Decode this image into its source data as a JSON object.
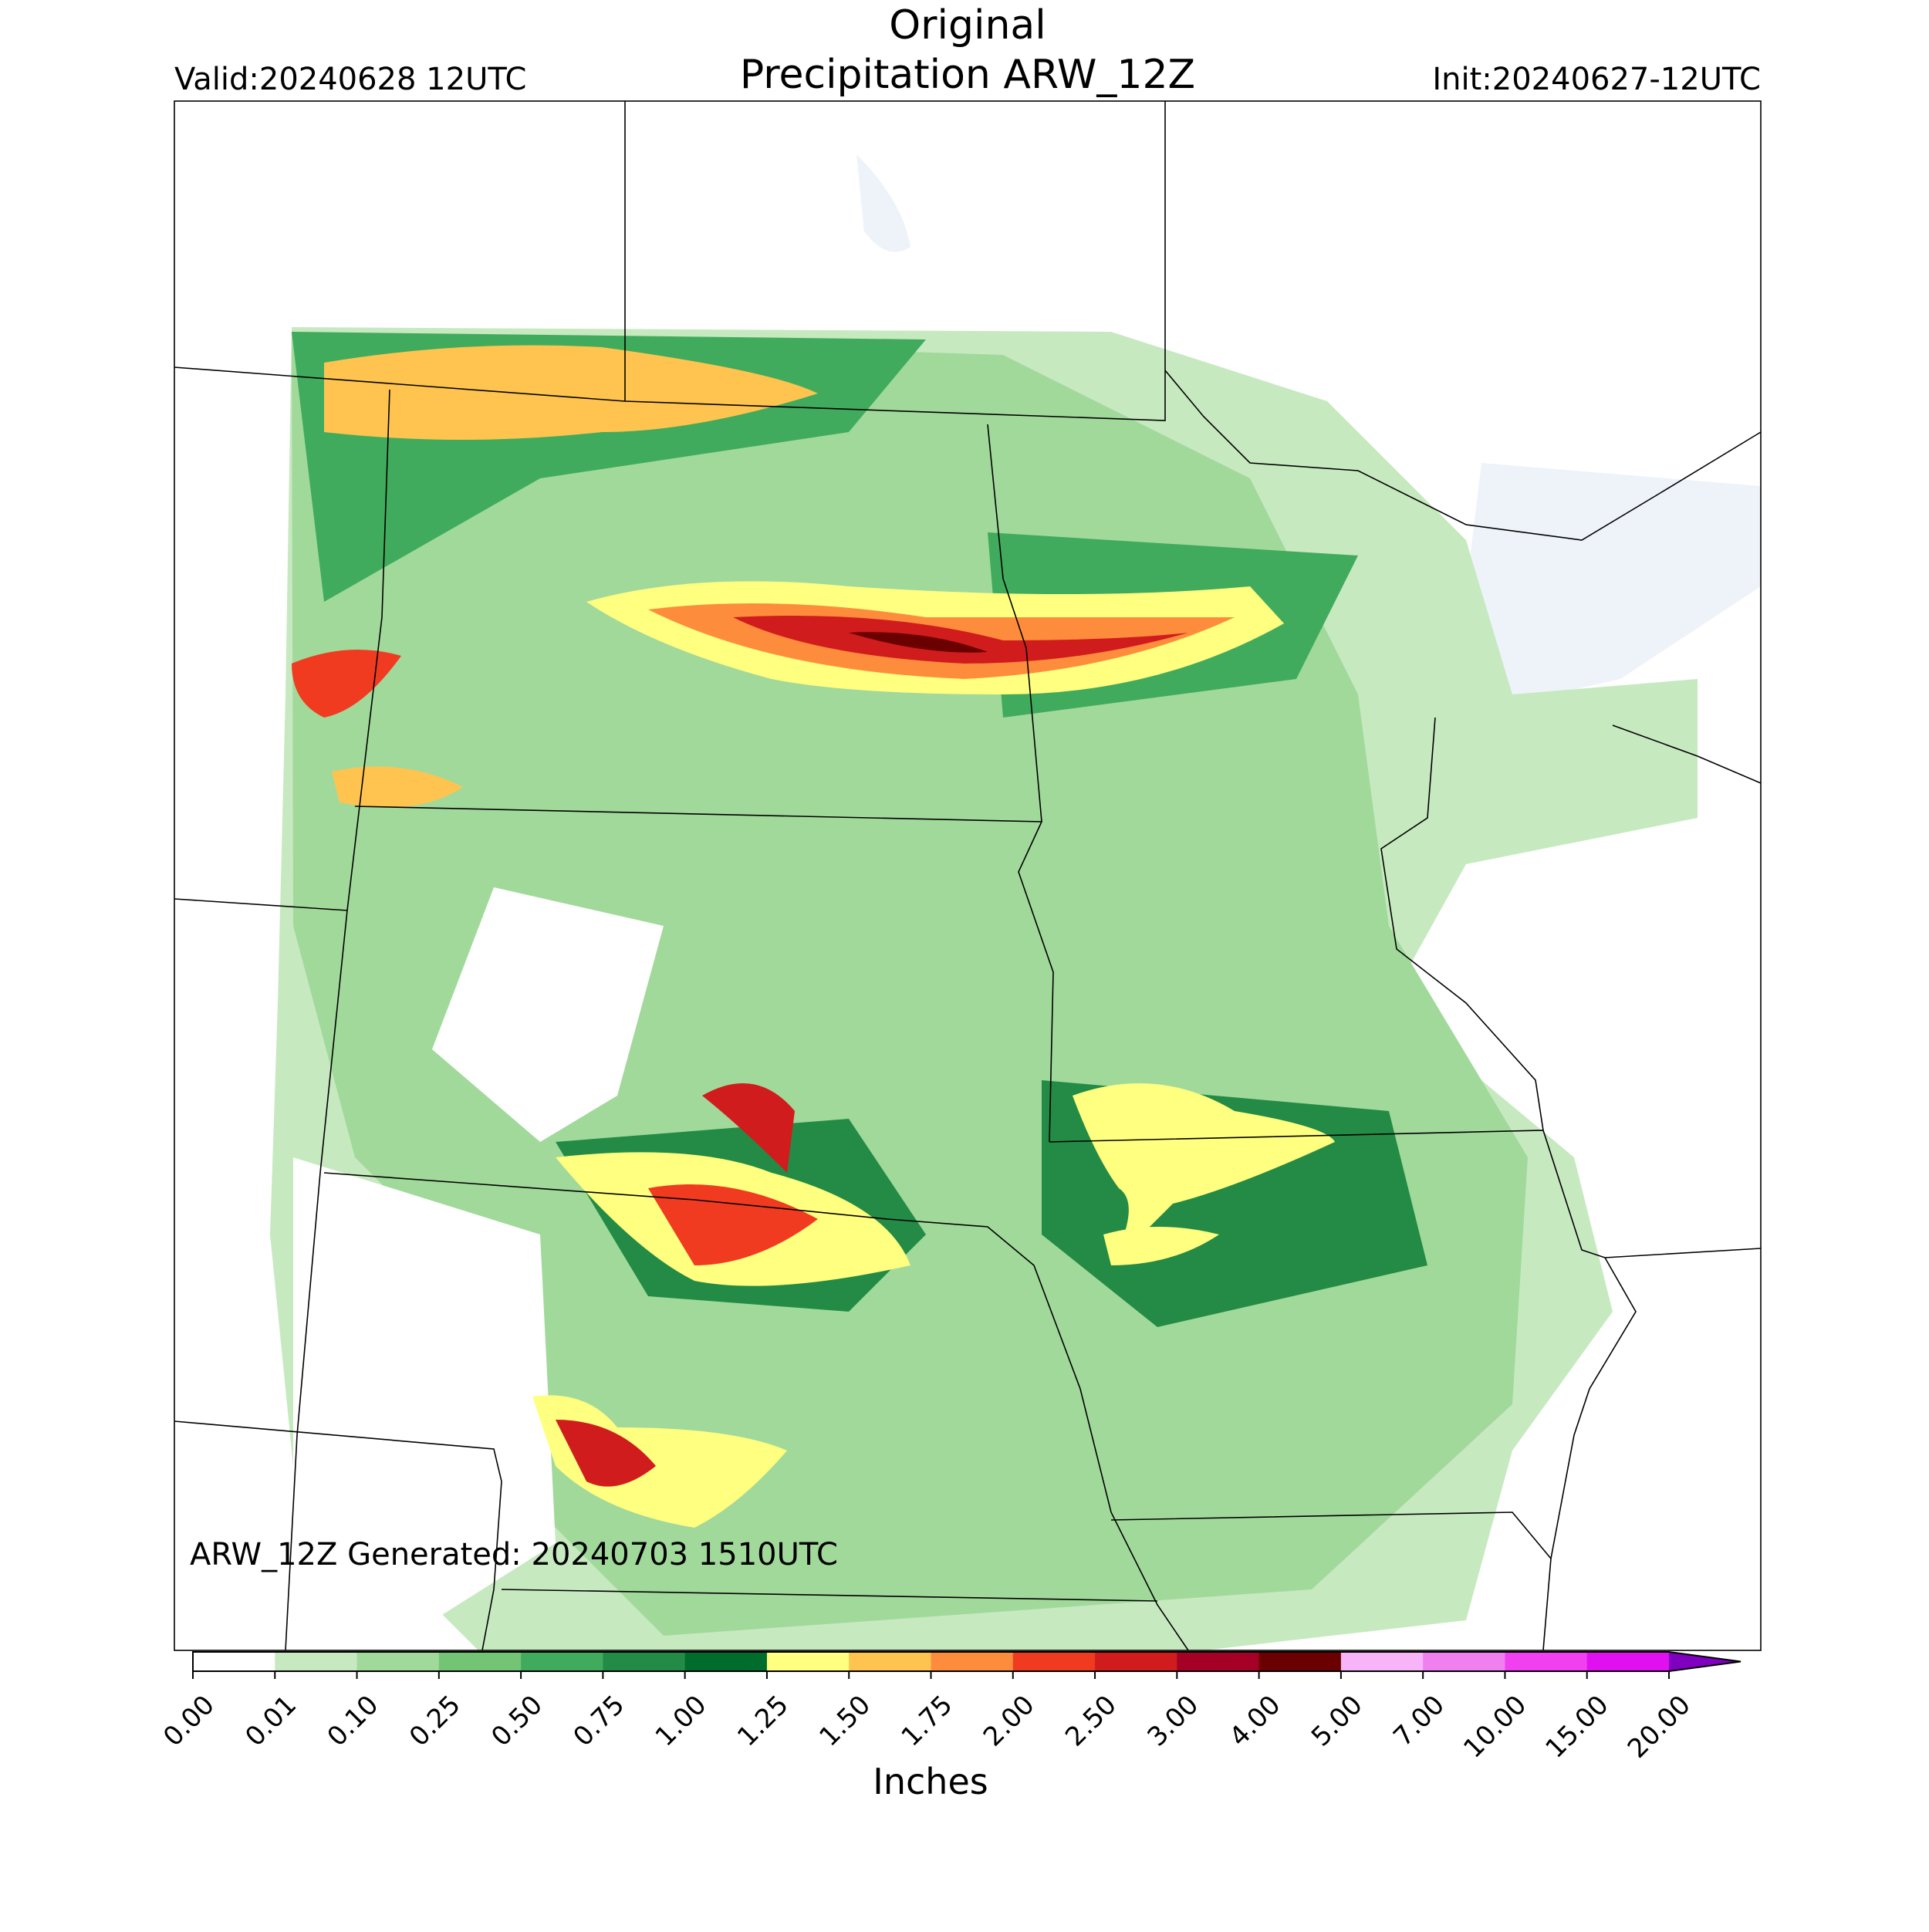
{
  "header": {
    "title": "Original",
    "subtitle": "Precipitation ARW_12Z",
    "valid": "Valid:20240628 12UTC",
    "init": "Init:20240627-12UTC"
  },
  "footer_note": "ARW_12Z Generated: 20240703 1510UTC",
  "colorbar": {
    "label": "Inches",
    "ticks": [
      {
        "value": 0,
        "label": "0.00"
      },
      {
        "value": 0.01,
        "label": "0.01"
      },
      {
        "value": 0.1,
        "label": "0.10"
      },
      {
        "value": 0.25,
        "label": "0.25"
      },
      {
        "value": 0.5,
        "label": "0.50"
      },
      {
        "value": 0.75,
        "label": "0.75"
      },
      {
        "value": 1,
        "label": "1.00"
      },
      {
        "value": 1.25,
        "label": "1.25"
      },
      {
        "value": 1.5,
        "label": "1.50"
      },
      {
        "value": 1.75,
        "label": "1.75"
      },
      {
        "value": 2,
        "label": "2.00"
      },
      {
        "value": 2.5,
        "label": "2.50"
      },
      {
        "value": 3,
        "label": "3.00"
      },
      {
        "value": 4,
        "label": "4.00"
      },
      {
        "value": 5,
        "label": "5.00"
      },
      {
        "value": 7,
        "label": "7.00"
      },
      {
        "value": 10,
        "label": "10.00"
      },
      {
        "value": 15,
        "label": "15.00"
      },
      {
        "value": 20,
        "label": "20.00"
      }
    ],
    "colors": [
      "#ffffff",
      "#c7e9c0",
      "#a1d99b",
      "#74c476",
      "#41ab5d",
      "#238b45",
      "#006d2c",
      "#ffff80",
      "#fec44f",
      "#fd8d3c",
      "#f03b20",
      "#d01c1c",
      "#a50026",
      "#6b0000",
      "#f8b4f8",
      "#f080f0",
      "#f040f0",
      "#e010f0",
      "#c000e0",
      "#9000d0"
    ],
    "extend_color": "#8000c0"
  }
}
